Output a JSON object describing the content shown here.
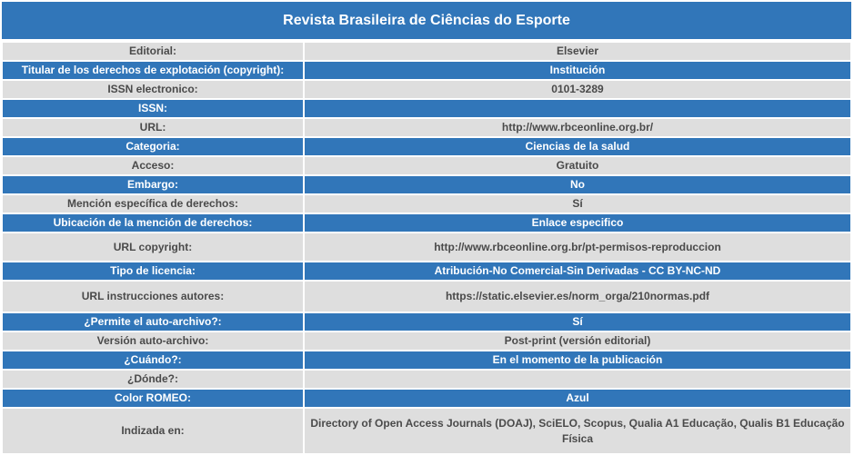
{
  "title": "Revista Brasileira de Ciências do Esporte",
  "rows": [
    {
      "label": "Editorial:",
      "value": "Elsevier"
    },
    {
      "label": "Titular de los derechos de explotación (copyright):",
      "value": "Institución"
    },
    {
      "label": "ISSN electronico:",
      "value": "0101-3289"
    },
    {
      "label": "ISSN:",
      "value": ""
    },
    {
      "label": "URL:",
      "value": "http://www.rbceonline.org.br/"
    },
    {
      "label": "Categoria:",
      "value": "Ciencias de la salud"
    },
    {
      "label": "Acceso:",
      "value": "Gratuito"
    },
    {
      "label": "Embargo:",
      "value": "No"
    },
    {
      "label": "Mención específica de derechos:",
      "value": "Sí"
    },
    {
      "label": "Ubicación de la mención de derechos:",
      "value": "Enlace especifico"
    },
    {
      "label": "URL copyright:",
      "value": "http://www.rbceonline.org.br/pt-permisos-reproduccion"
    },
    {
      "label": "Tipo de licencia:",
      "value": "Atribución-No Comercial-Sin Derivadas - CC BY-NC-ND"
    },
    {
      "label": "URL instrucciones autores:",
      "value": "https://static.elsevier.es/norm_orga/210normas.pdf"
    },
    {
      "label": "¿Permite el auto-archivo?:",
      "value": "Sí"
    },
    {
      "label": "Versión auto-archivo:",
      "value": "Post-print (versión editorial)"
    },
    {
      "label": "¿Cuándo?:",
      "value": "En el momento de la publicación"
    },
    {
      "label": "¿Dónde?:",
      "value": ""
    },
    {
      "label": "Color ROMEO:",
      "value": "Azul"
    },
    {
      "label": "Indizada en:",
      "value": "Directory of Open Access Journals (DOAJ), SciELO, Scopus, Qualia A1 Educação, Qualis B1 Educação Física"
    }
  ],
  "colors": {
    "header_bg": "#3176b9",
    "dark_row_bg": "#3176b9",
    "light_row_bg": "#dedede",
    "dark_text": "#4a4a4a"
  }
}
